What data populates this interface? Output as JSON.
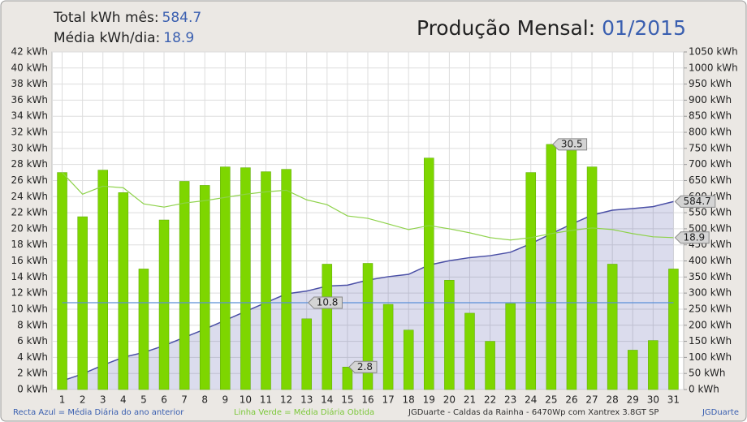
{
  "header": {
    "total_label": "Total kWh mês:",
    "total_value": "584.7",
    "avg_label": "Média kWh/dia:",
    "avg_value": "18.9",
    "title": "Produção Mensal:",
    "period": "01/2015"
  },
  "chart_data": {
    "type": "bar",
    "categories": [
      "1",
      "2",
      "3",
      "4",
      "5",
      "6",
      "7",
      "8",
      "9",
      "10",
      "11",
      "12",
      "13",
      "14",
      "15",
      "16",
      "17",
      "18",
      "19",
      "20",
      "21",
      "22",
      "23",
      "24",
      "25",
      "26",
      "27",
      "28",
      "29",
      "30",
      "31"
    ],
    "series": [
      {
        "kind": "bar",
        "color": "#7ed600",
        "values": [
          27.0,
          21.5,
          27.3,
          24.5,
          15.0,
          21.1,
          25.9,
          25.4,
          27.7,
          27.6,
          27.1,
          27.4,
          8.8,
          15.6,
          2.8,
          15.7,
          10.6,
          7.4,
          28.8,
          13.6,
          9.5,
          6.0,
          10.7,
          27.0,
          30.5,
          30.1,
          27.7,
          15.6,
          4.9,
          6.1,
          15.0
        ]
      },
      {
        "kind": "area",
        "axis": "y2",
        "color": "#4a4fa6",
        "values": [
          27.0,
          48.5,
          75.8,
          100.3,
          115.3,
          136.4,
          162.3,
          187.7,
          215.4,
          243.0,
          270.1,
          297.5,
          306.3,
          321.9,
          324.7,
          340.4,
          351.0,
          358.4,
          387.2,
          400.8,
          410.3,
          416.3,
          427.0,
          454.0,
          484.5,
          514.6,
          542.3,
          557.9,
          562.8,
          568.9,
          584.7
        ]
      },
      {
        "kind": "line",
        "color": "#8ed24a",
        "values": [
          27.0,
          24.3,
          25.3,
          25.1,
          23.1,
          22.7,
          23.2,
          23.5,
          23.9,
          24.3,
          24.6,
          24.8,
          23.6,
          23.0,
          21.6,
          21.3,
          20.6,
          19.9,
          20.4,
          20.0,
          19.5,
          18.9,
          18.6,
          18.9,
          19.4,
          19.8,
          20.1,
          19.9,
          19.4,
          19.0,
          18.9
        ]
      },
      {
        "kind": "line",
        "color": "#5a8fd8",
        "values": [
          10.8,
          10.8,
          10.8,
          10.8,
          10.8,
          10.8,
          10.8,
          10.8,
          10.8,
          10.8,
          10.8,
          10.8,
          10.8,
          10.8,
          10.8,
          10.8,
          10.8,
          10.8,
          10.8,
          10.8,
          10.8,
          10.8,
          10.8,
          10.8,
          10.8,
          10.8,
          10.8,
          10.8,
          10.8,
          10.8,
          10.8
        ]
      }
    ],
    "callouts": [
      {
        "series": 0,
        "index": 24
      },
      {
        "series": 0,
        "index": 14
      },
      {
        "series": 3,
        "index": 12
      },
      {
        "series": 1,
        "index": 30
      },
      {
        "series": 2,
        "index": 30
      }
    ],
    "ylim": [
      0,
      42
    ],
    "yticks": [
      {
        "value": 0,
        "label": "0 kWh"
      },
      {
        "value": 2,
        "label": "2 kWh"
      },
      {
        "value": 4,
        "label": "4 kWh"
      },
      {
        "value": 6,
        "label": "6 kWh"
      },
      {
        "value": 8,
        "label": "8 kWh"
      },
      {
        "value": 10,
        "label": "10 kWh"
      },
      {
        "value": 12,
        "label": "12 kWh"
      },
      {
        "value": 14,
        "label": "14 kWh"
      },
      {
        "value": 16,
        "label": "16 kWh"
      },
      {
        "value": 18,
        "label": "18 kWh"
      },
      {
        "value": 20,
        "label": "20 kWh"
      },
      {
        "value": 22,
        "label": "22 kWh"
      },
      {
        "value": 24,
        "label": "24 kWh"
      },
      {
        "value": 26,
        "label": "26 kWh"
      },
      {
        "value": 28,
        "label": "28 kWh"
      },
      {
        "value": 30,
        "label": "30 kWh"
      },
      {
        "value": 32,
        "label": "32 kWh"
      },
      {
        "value": 34,
        "label": "34 kWh"
      },
      {
        "value": 36,
        "label": "36 kWh"
      },
      {
        "value": 38,
        "label": "38 kWh"
      },
      {
        "value": 40,
        "label": "40 kWh"
      },
      {
        "value": 42,
        "label": "42 kWh"
      }
    ],
    "y2lim": [
      0,
      1050
    ],
    "y2ticks": [
      {
        "value": 0,
        "label": "0 kWh"
      },
      {
        "value": 50,
        "label": "50 kWh"
      },
      {
        "value": 100,
        "label": "100 kWh"
      },
      {
        "value": 150,
        "label": "150 kWh"
      },
      {
        "value": 200,
        "label": "200 kWh"
      },
      {
        "value": 250,
        "label": "250 kWh"
      },
      {
        "value": 300,
        "label": "300 kWh"
      },
      {
        "value": 350,
        "label": "350 kWh"
      },
      {
        "value": 400,
        "label": "400 kWh"
      },
      {
        "value": 450,
        "label": "450 kWh"
      },
      {
        "value": 500,
        "label": "500 kWh"
      },
      {
        "value": 550,
        "label": "550 kWh"
      },
      {
        "value": 600,
        "label": "600 kWh"
      },
      {
        "value": 650,
        "label": "650 kWh"
      },
      {
        "value": 700,
        "label": "700 kWh"
      },
      {
        "value": 750,
        "label": "750 kWh"
      },
      {
        "value": 800,
        "label": "800 kWh"
      },
      {
        "value": 850,
        "label": "850 kWh"
      },
      {
        "value": 900,
        "label": "900 kWh"
      },
      {
        "value": 950,
        "label": "950 kWh"
      },
      {
        "value": 1000,
        "label": "1000 kWh"
      },
      {
        "value": 1050,
        "label": "1050 kWh"
      }
    ],
    "grid": true,
    "footer": {
      "blue_note": "Recta Azul = Média Diária do ano anterior",
      "green_note": "Linha Verde = Média Diária Obtida",
      "credit": "JGDuarte  -  Caldas da Rainha  -  6470Wp com Xantrex 3.8GT SP",
      "author": "JGDuarte"
    }
  }
}
